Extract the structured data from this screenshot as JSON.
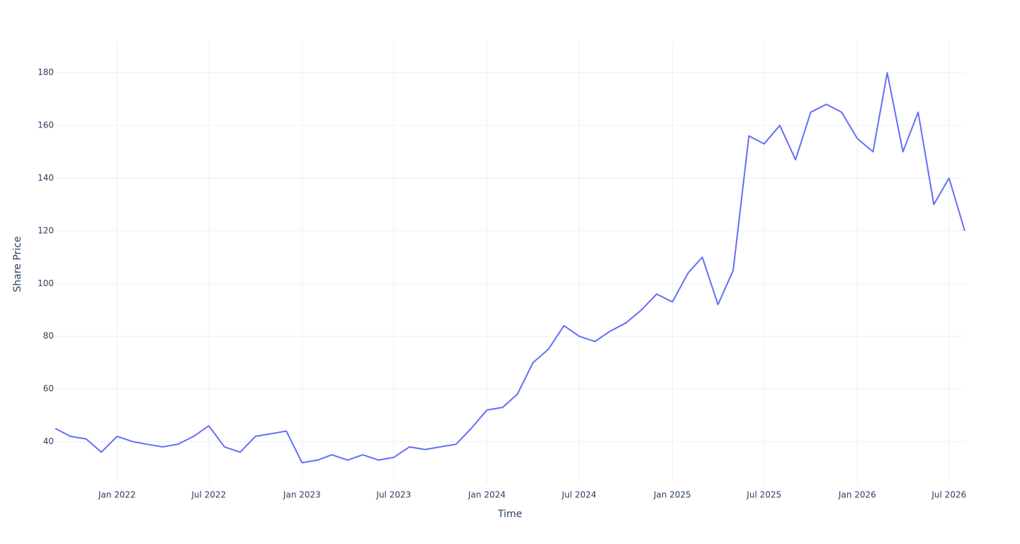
{
  "chart_data": {
    "type": "line",
    "x_label": "Time",
    "y_label": "Share Price",
    "x": [
      "2021-09",
      "2021-10",
      "2021-11",
      "2021-12",
      "2022-01",
      "2022-02",
      "2022-03",
      "2022-04",
      "2022-05",
      "2022-06",
      "2022-07",
      "2022-08",
      "2022-09",
      "2022-10",
      "2022-11",
      "2022-12",
      "2023-01",
      "2023-02",
      "2023-03",
      "2023-04",
      "2023-05",
      "2023-06",
      "2023-07",
      "2023-08",
      "2023-09",
      "2023-10",
      "2023-11",
      "2023-12",
      "2024-01",
      "2024-02",
      "2024-03",
      "2024-04",
      "2024-05",
      "2024-06",
      "2024-07",
      "2024-08",
      "2024-09",
      "2024-10",
      "2024-11",
      "2024-12",
      "2025-01",
      "2025-02",
      "2025-03",
      "2025-04",
      "2025-05",
      "2025-06",
      "2025-07",
      "2025-08",
      "2025-09",
      "2025-10",
      "2025-11",
      "2025-12",
      "2026-01",
      "2026-02",
      "2026-03",
      "2026-04",
      "2026-05",
      "2026-06",
      "2026-07",
      "2026-08"
    ],
    "series": [
      {
        "name": "Share Price",
        "color": "#636efa",
        "values": [
          45,
          42,
          41,
          36,
          42,
          40,
          39,
          38,
          39,
          42,
          46,
          38,
          36,
          42,
          43,
          44,
          32,
          33,
          35,
          33,
          35,
          33,
          34,
          38,
          37,
          38,
          39,
          45,
          52,
          53,
          58,
          70,
          75,
          84,
          80,
          78,
          82,
          85,
          90,
          96,
          93,
          104,
          110,
          92,
          105,
          156,
          153,
          160,
          147,
          165,
          168,
          165,
          155,
          150,
          180,
          150,
          165,
          130,
          140,
          120
        ]
      }
    ],
    "xlim": [
      "2021-09",
      "2026-08"
    ],
    "xticks": [
      {
        "value": "2022-01",
        "label": "Jan 2022"
      },
      {
        "value": "2022-07",
        "label": "Jul 2022"
      },
      {
        "value": "2023-01",
        "label": "Jan 2023"
      },
      {
        "value": "2023-07",
        "label": "Jul 2023"
      },
      {
        "value": "2024-01",
        "label": "Jan 2024"
      },
      {
        "value": "2024-07",
        "label": "Jul 2024"
      },
      {
        "value": "2025-01",
        "label": "Jan 2025"
      },
      {
        "value": "2025-07",
        "label": "Jul 2025"
      },
      {
        "value": "2026-01",
        "label": "Jan 2026"
      },
      {
        "value": "2026-07",
        "label": "Jul 2026"
      }
    ],
    "ylim": [
      24,
      192
    ],
    "yticks": [
      40,
      60,
      80,
      100,
      120,
      140,
      160,
      180
    ],
    "grid": true
  }
}
